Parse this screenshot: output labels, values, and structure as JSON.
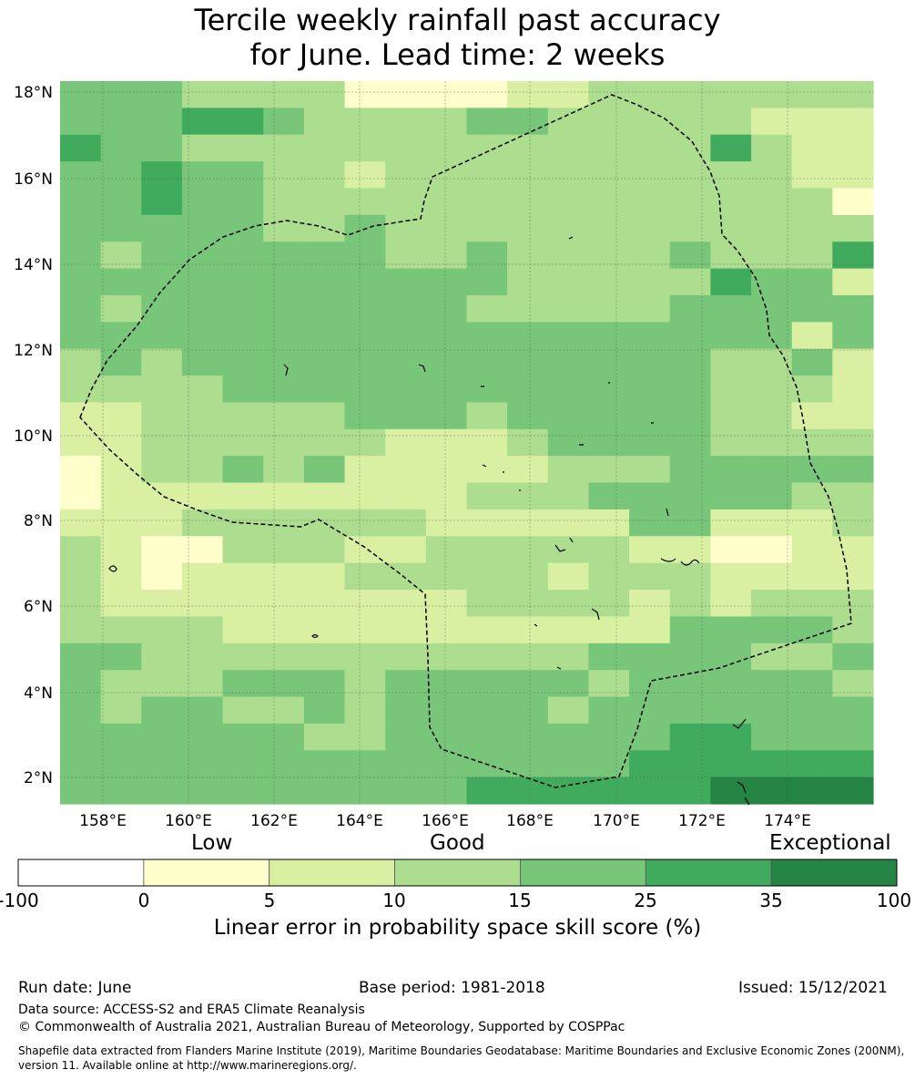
{
  "title": {
    "line1": "Tercile weekly rainfall past accuracy",
    "line2": "for June. Lead time: 2 weeks"
  },
  "map": {
    "lat_labels": [
      "18°N",
      "16°N",
      "14°N",
      "12°N",
      "10°N",
      "8°N",
      "6°N",
      "4°N",
      "2°N"
    ],
    "lon_labels": [
      "158°E",
      "160°E",
      "162°E",
      "164°E",
      "166°E",
      "168°E",
      "170°E",
      "172°E",
      "174°E"
    ],
    "level_colors": [
      "#ffffff",
      "#ffffcc",
      "#d9f0a3",
      "#addd8e",
      "#78c679",
      "#41ab5d",
      "#238443"
    ],
    "grid": [
      "33322220000112222222",
      "33344322223322222111",
      "43322222222222224211",
      "33433221222222222211",
      "33433222222222222220",
      "33333223222222222222",
      "32333333223222232224",
      "33333333333222224331",
      "32333333332222233333",
      "33333333333333333313",
      "23233333333333332231",
      "22223333333333332221",
      "11222223332333332211",
      "11222222111233332222",
      "01223231111122233333",
      "01111111112223333322",
      "11122222211111331112",
      "21002221122222110011",
      "21011112222212221111",
      "21111111112222121222",
      "22221111111111133332",
      "33222222222223333223",
      "32223332333332333332",
      "32332232333323333333",
      "33333322333333344333",
      "33333333333333444444",
      "33333333334444445555"
    ]
  },
  "colorbar": {
    "categories": [
      "Low",
      "Good",
      "Exceptional"
    ],
    "ticks": [
      "-100",
      "0",
      "5",
      "10",
      "15",
      "25",
      "35",
      "100"
    ],
    "colors": [
      "#ffffff",
      "#ffffcc",
      "#d9f0a3",
      "#addd8e",
      "#78c679",
      "#41ab5d",
      "#238443"
    ],
    "label": "Linear error in probability space skill score (%)"
  },
  "footer": {
    "run_date": "Run date: June",
    "base_period": "Base period: 1981-2018",
    "issued": "Issued: 15/12/2021",
    "data_source": "Data source: ACCESS-S2 and ERA5 Climate Reanalysis",
    "copyright": "© Commonwealth of Australia 2021, Australian Bureau of Meteorology, Supported by COSPPac",
    "shapefile_1": "Shapefile data extracted from Flanders Marine Institute (2019), Maritime Boundaries Geodatabase: Maritime Boundaries and Exclusive Economic Zones (200NM),",
    "shapefile_2": "version 11. Available online at http://www.marineregions.org/."
  }
}
